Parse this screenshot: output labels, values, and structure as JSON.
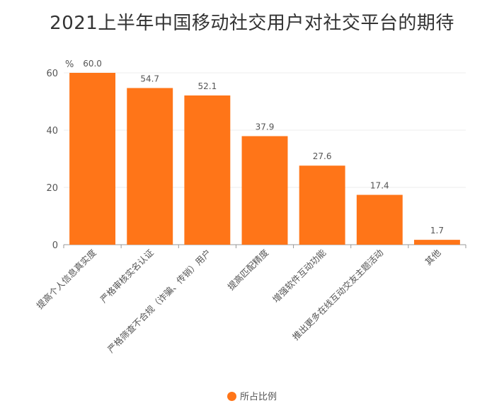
{
  "chart_data": {
    "type": "bar",
    "title": "2021上半年中国移动社交用户对社交平台的期待",
    "ylabel": "%",
    "xlabel": "",
    "ylim": [
      0,
      60
    ],
    "yticks": [
      0,
      20,
      40,
      60
    ],
    "categories": [
      "提高个人信息真实度",
      "严格审核实名认证",
      "严格筛查不合规（诈骗、传销）用户",
      "提高匹配精度",
      "增强软件互动功能",
      "推出更多在线互动交友主题活动",
      "其他"
    ],
    "series": [
      {
        "name": "所占比例",
        "values": [
          60.0,
          54.7,
          52.1,
          37.9,
          27.6,
          17.4,
          1.7
        ],
        "labels": [
          "60.0",
          "54.7",
          "52.1",
          "37.9",
          "27.6",
          "17.4",
          "1.7"
        ],
        "color": "#FF7518"
      }
    ],
    "grid": true,
    "legend_position": "bottom"
  }
}
